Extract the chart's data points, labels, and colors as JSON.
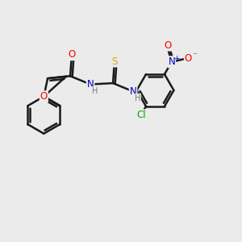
{
  "bg_color": "#ebebeb",
  "bond_color": "#1a1a1a",
  "bond_width": 1.8,
  "atom_colors": {
    "O": "#ff0000",
    "N": "#0000cc",
    "S": "#ccaa00",
    "Cl": "#00aa00",
    "C": "#1a1a1a",
    "H": "#777777"
  },
  "font_size": 8.5,
  "figsize": [
    3.0,
    3.0
  ],
  "dpi": 100,
  "xlim": [
    0,
    10
  ],
  "ylim": [
    0,
    10
  ]
}
